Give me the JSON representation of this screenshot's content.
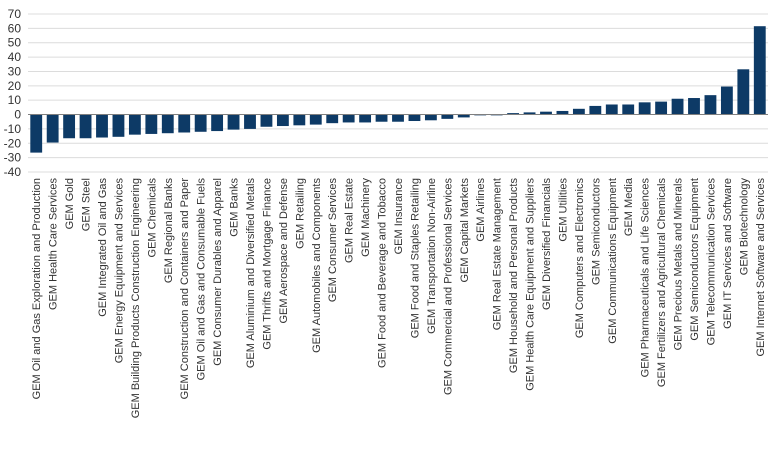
{
  "chart_data": {
    "type": "bar",
    "title": "",
    "xlabel": "",
    "ylabel": "",
    "ylim": [
      -40,
      70
    ],
    "yticks": [
      -40,
      -30,
      -20,
      -10,
      0,
      10,
      20,
      30,
      40,
      50,
      60,
      70
    ],
    "grid": true,
    "legend": "none",
    "bar_color": "#0d3a66",
    "categories": [
      "GEM Oil and Gas Exploration and Production",
      "GEM Health Care Services",
      "GEM Gold",
      "GEM Steel",
      "GEM Integrated Oil and Gas",
      "GEM Energy Equipment and Services",
      "GEM Building Products Construction Engineering",
      "GEM Chemicals",
      "GEM Regional Banks",
      "GEM Construction and Containers and Paper",
      "GEM Oil and Gas and Consumable Fuels",
      "GEM Consumer Durables and Apparel",
      "GEM Banks",
      "GEM Aluminium and Diversified Metals",
      "GEM Thrifts and Mortgage Finance",
      "GEM Aerospace and Defense",
      "GEM Retailing",
      "GEM Automobiles and Components",
      "GEM Consumer Services",
      "GEM Real Estate",
      "GEM Machinery",
      "GEM Food and Beverage and Tobacco",
      "GEM Insurance",
      "GEM Food and Staples Retailing",
      "GEM Transportation Non-Airline",
      "GEM Commercial and Professional Services",
      "GEM Capital Markets",
      "GEM Airlines",
      "GEM Real Estate Management",
      "GEM Household and Personal Products",
      "GEM Health Care Equipment and Suppliers",
      "GEM Diversified Financials",
      "GEM Utilities",
      "GEM Computers and Electronics",
      "GEM Semiconductors",
      "GEM Communications Equipment",
      "GEM Media",
      "GEM Pharmaceuticals and Life Sciences",
      "GEM Fertilizers and Agricultural Chemicals",
      "GEM Precious Metals and Minerals",
      "GEM Semiconductors Equipment",
      "GEM Telecommunication Services",
      "GEM IT Services and Software",
      "GEM Biotechnology",
      "GEM Internet Software and Services"
    ],
    "values": [
      -26.5,
      -19.5,
      -16.5,
      -16.5,
      -16,
      -15.5,
      -14,
      -13.5,
      -13,
      -12.5,
      -12,
      -11.5,
      -10.5,
      -10,
      -8.5,
      -8,
      -7.5,
      -7,
      -6,
      -5.5,
      -5.5,
      -5,
      -5,
      -4.5,
      -4,
      -3,
      -2,
      -0.5,
      -0.3,
      1,
      1.5,
      2,
      2.5,
      4,
      6,
      7,
      7,
      8.5,
      9,
      11,
      11.5,
      13.5,
      19.5,
      31.5,
      61.5
    ]
  }
}
